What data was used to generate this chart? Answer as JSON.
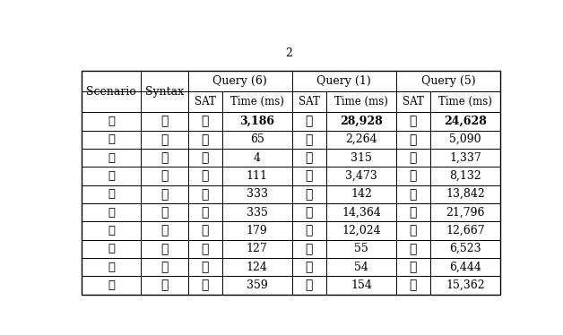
{
  "title_char": "2",
  "scenarios": [
    "①",
    "②",
    "③",
    "④",
    "⑤",
    "⑥",
    "⑦",
    "⑧",
    "⑨",
    "⑩"
  ],
  "col_headers_top": [
    "Query (6)",
    "Query (1)",
    "Query (5)"
  ],
  "col_headers_sub": [
    "SAT",
    "Time (ms)",
    "SAT",
    "Time (ms)",
    "SAT",
    "Time (ms)"
  ],
  "row_header1": "Scenario",
  "row_header2": "Syntax",
  "data": [
    [
      true,
      "3,186",
      true,
      "28,928",
      true,
      "24,628"
    ],
    [
      true,
      "65",
      true,
      "2,264",
      true,
      "5,090"
    ],
    [
      true,
      "4",
      true,
      "315",
      true,
      "1,337"
    ],
    [
      true,
      "111",
      true,
      "3,473",
      true,
      "8,132"
    ],
    [
      true,
      "333",
      true,
      "142",
      true,
      "13,842"
    ],
    [
      true,
      "335",
      true,
      "14,364",
      true,
      "21,796"
    ],
    [
      true,
      "179",
      true,
      "12,024",
      true,
      "12,667"
    ],
    [
      true,
      "127",
      true,
      "55",
      true,
      "6,523"
    ],
    [
      true,
      "124",
      true,
      "54",
      true,
      "6,444"
    ],
    [
      true,
      "359",
      true,
      "154",
      true,
      "15,362"
    ]
  ],
  "bold_row": 0,
  "checkmark": "✓",
  "fig_width": 6.28,
  "fig_height": 3.74,
  "dpi": 100,
  "bg_color": "#ffffff",
  "line_color": "#000000",
  "font_size": 9.0,
  "header_font_size": 9.0
}
